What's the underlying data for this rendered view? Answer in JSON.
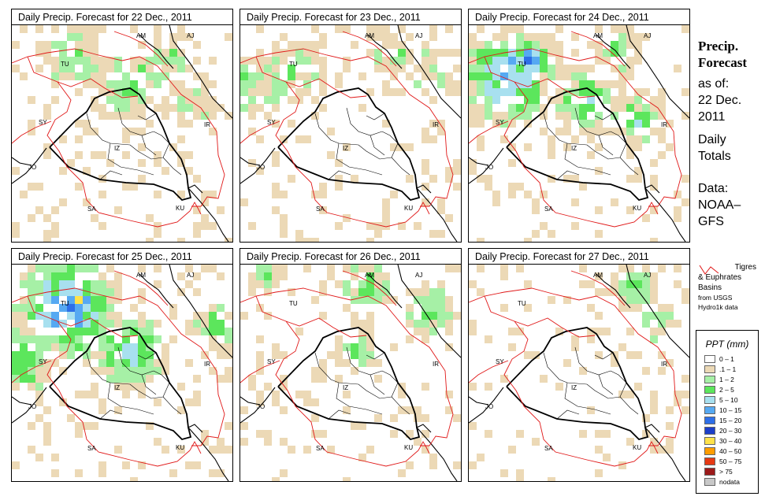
{
  "panels": [
    {
      "title": "Daily Precip. Forecast for  22 Dec., 2011",
      "day": 0
    },
    {
      "title": "Daily Precip. Forecast for  23 Dec., 2011",
      "day": 1
    },
    {
      "title": "Daily Precip. Forecast for  24 Dec., 2011",
      "day": 2
    },
    {
      "title": "Daily Precip. Forecast for  25 Dec., 2011",
      "day": 3
    },
    {
      "title": "Daily Precip. Forecast for  26 Dec., 2011",
      "day": 4
    },
    {
      "title": "Daily Precip. Forecast for  27 Dec., 2011",
      "day": 5
    }
  ],
  "map_labels": [
    "AM",
    "AJ",
    "TU",
    "SY",
    "IR",
    "JO",
    "SA",
    "KU",
    "IZ"
  ],
  "sidebar": {
    "title_line1": "Precip.",
    "title_line2": "Forecast",
    "asof_line1": "as of:",
    "asof_line2": "22 Dec.",
    "asof_line3": "2011",
    "daily_line1": "Daily",
    "daily_line2": "Totals",
    "data_line1": "Data:",
    "data_line2": "NOAA–",
    "data_line3": "GFS"
  },
  "basin_note": {
    "line1": "Tigres",
    "line2": "& Euphrates",
    "line3": "Basins",
    "line4": "from USGS",
    "line5": "Hydro1k data"
  },
  "legend": {
    "title": "PPT (mm)",
    "items": [
      {
        "label": "0 – 1",
        "color": "#ffffff"
      },
      {
        "label": ".1 – 1",
        "color": "#ecd9b6"
      },
      {
        "label": "1 – 2",
        "color": "#a6f0a6"
      },
      {
        "label": "2 – 5",
        "color": "#5ce65c"
      },
      {
        "label": "5 – 10",
        "color": "#a8e0ef"
      },
      {
        "label": "10 – 15",
        "color": "#56a9f2"
      },
      {
        "label": "15 – 20",
        "color": "#2e6fe8"
      },
      {
        "label": "20 – 30",
        "color": "#1c3fc9"
      },
      {
        "label": "30 – 40",
        "color": "#ffe24a"
      },
      {
        "label": "40 – 50",
        "color": "#ff9d00"
      },
      {
        "label": "50 – 75",
        "color": "#e63a14"
      },
      {
        "label": "> 75",
        "color": "#9c1a1a"
      },
      {
        "label": "nodata",
        "color": "#c8c8c8"
      }
    ]
  }
}
